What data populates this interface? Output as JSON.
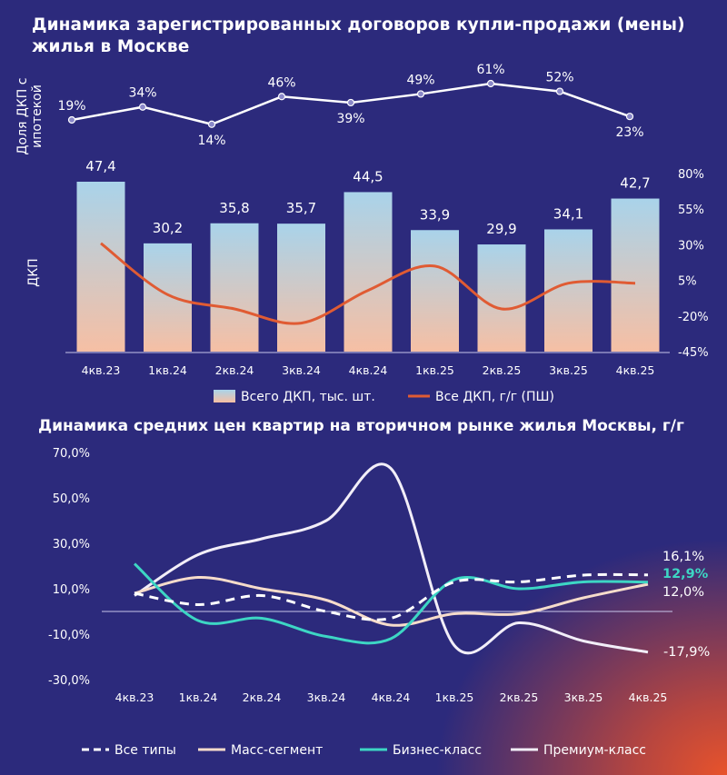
{
  "colors": {
    "background": "#2c2a7c",
    "accent_orange": "#e8532b",
    "line_white": "#ffffff",
    "mass_segment": "#f6dccb",
    "business": "#3dd6c4",
    "premium": "#f2eef8",
    "bar_top": "#a9d3ea",
    "bar_bottom": "#f6bfa4",
    "yoy_line": "#e05b33"
  },
  "chart_data": [
    {
      "type": "bar",
      "title": "Динамика зарегистрированных договоров купли-продажи (мены) жилья в Москве",
      "categories": [
        "4кв.23",
        "1кв.24",
        "2кв.24",
        "3кв.24",
        "4кв.24",
        "1кв.25",
        "2кв.25",
        "3кв.25",
        "4кв.25"
      ],
      "mortgage_share": {
        "label": "Доля ДКП с ипотекой",
        "values": [
          19,
          34,
          14,
          46,
          39,
          49,
          61,
          52,
          23
        ],
        "labels": [
          "19%",
          "34%",
          "14%",
          "46%",
          "39%",
          "49%",
          "61%",
          "52%",
          "23%"
        ]
      },
      "series": [
        {
          "name": "Всего ДКП, тыс. шт.",
          "values": [
            47.4,
            30.2,
            35.8,
            35.7,
            44.5,
            33.9,
            29.9,
            34.1,
            42.7
          ],
          "labels": [
            "47,4",
            "30,2",
            "35,8",
            "35,7",
            "44,5",
            "33,9",
            "29,9",
            "34,1",
            "42,7"
          ]
        },
        {
          "name": "Все ДКП, г/г (ПШ)",
          "values": [
            31,
            -5,
            -15,
            -25,
            -2,
            15,
            -15,
            3,
            3
          ]
        }
      ],
      "ylabel": "ДКП",
      "y2_ticks": [
        "80%",
        "55%",
        "30%",
        "5%",
        "-20%",
        "-45%"
      ],
      "y2lim": [
        -45,
        80
      ]
    },
    {
      "type": "line",
      "title": "Динамика средних цен квартир на вторичном рынке жилья Москвы, г/г",
      "categories": [
        "4кв.23",
        "1кв.24",
        "2кв.24",
        "3кв.24",
        "4кв.24",
        "1кв.25",
        "2кв.25",
        "3кв.25",
        "4кв.25"
      ],
      "ylim": [
        -30,
        70
      ],
      "y_ticks": [
        "70,0%",
        "50,0%",
        "30,0%",
        "10,0%",
        "-10,0%",
        "-30,0%"
      ],
      "series": [
        {
          "name": "Все типы",
          "values": [
            8,
            3,
            7,
            0,
            -3,
            13,
            13,
            16,
            16.1
          ],
          "end_label": "16,1%"
        },
        {
          "name": "Масс-сегмент",
          "values": [
            8,
            15,
            10,
            5,
            -6,
            -1,
            -1,
            6,
            12.0
          ],
          "end_label": "12,0%"
        },
        {
          "name": "Бизнес-класс",
          "values": [
            21,
            -4,
            -3,
            -11,
            -12,
            14,
            10,
            13,
            12.9
          ],
          "end_label": "12,9%"
        },
        {
          "name": "Премиум-класс",
          "values": [
            7,
            25,
            32,
            40,
            63,
            -15,
            -5,
            -13,
            -17.9
          ],
          "end_label": "-17,9%"
        }
      ]
    }
  ]
}
